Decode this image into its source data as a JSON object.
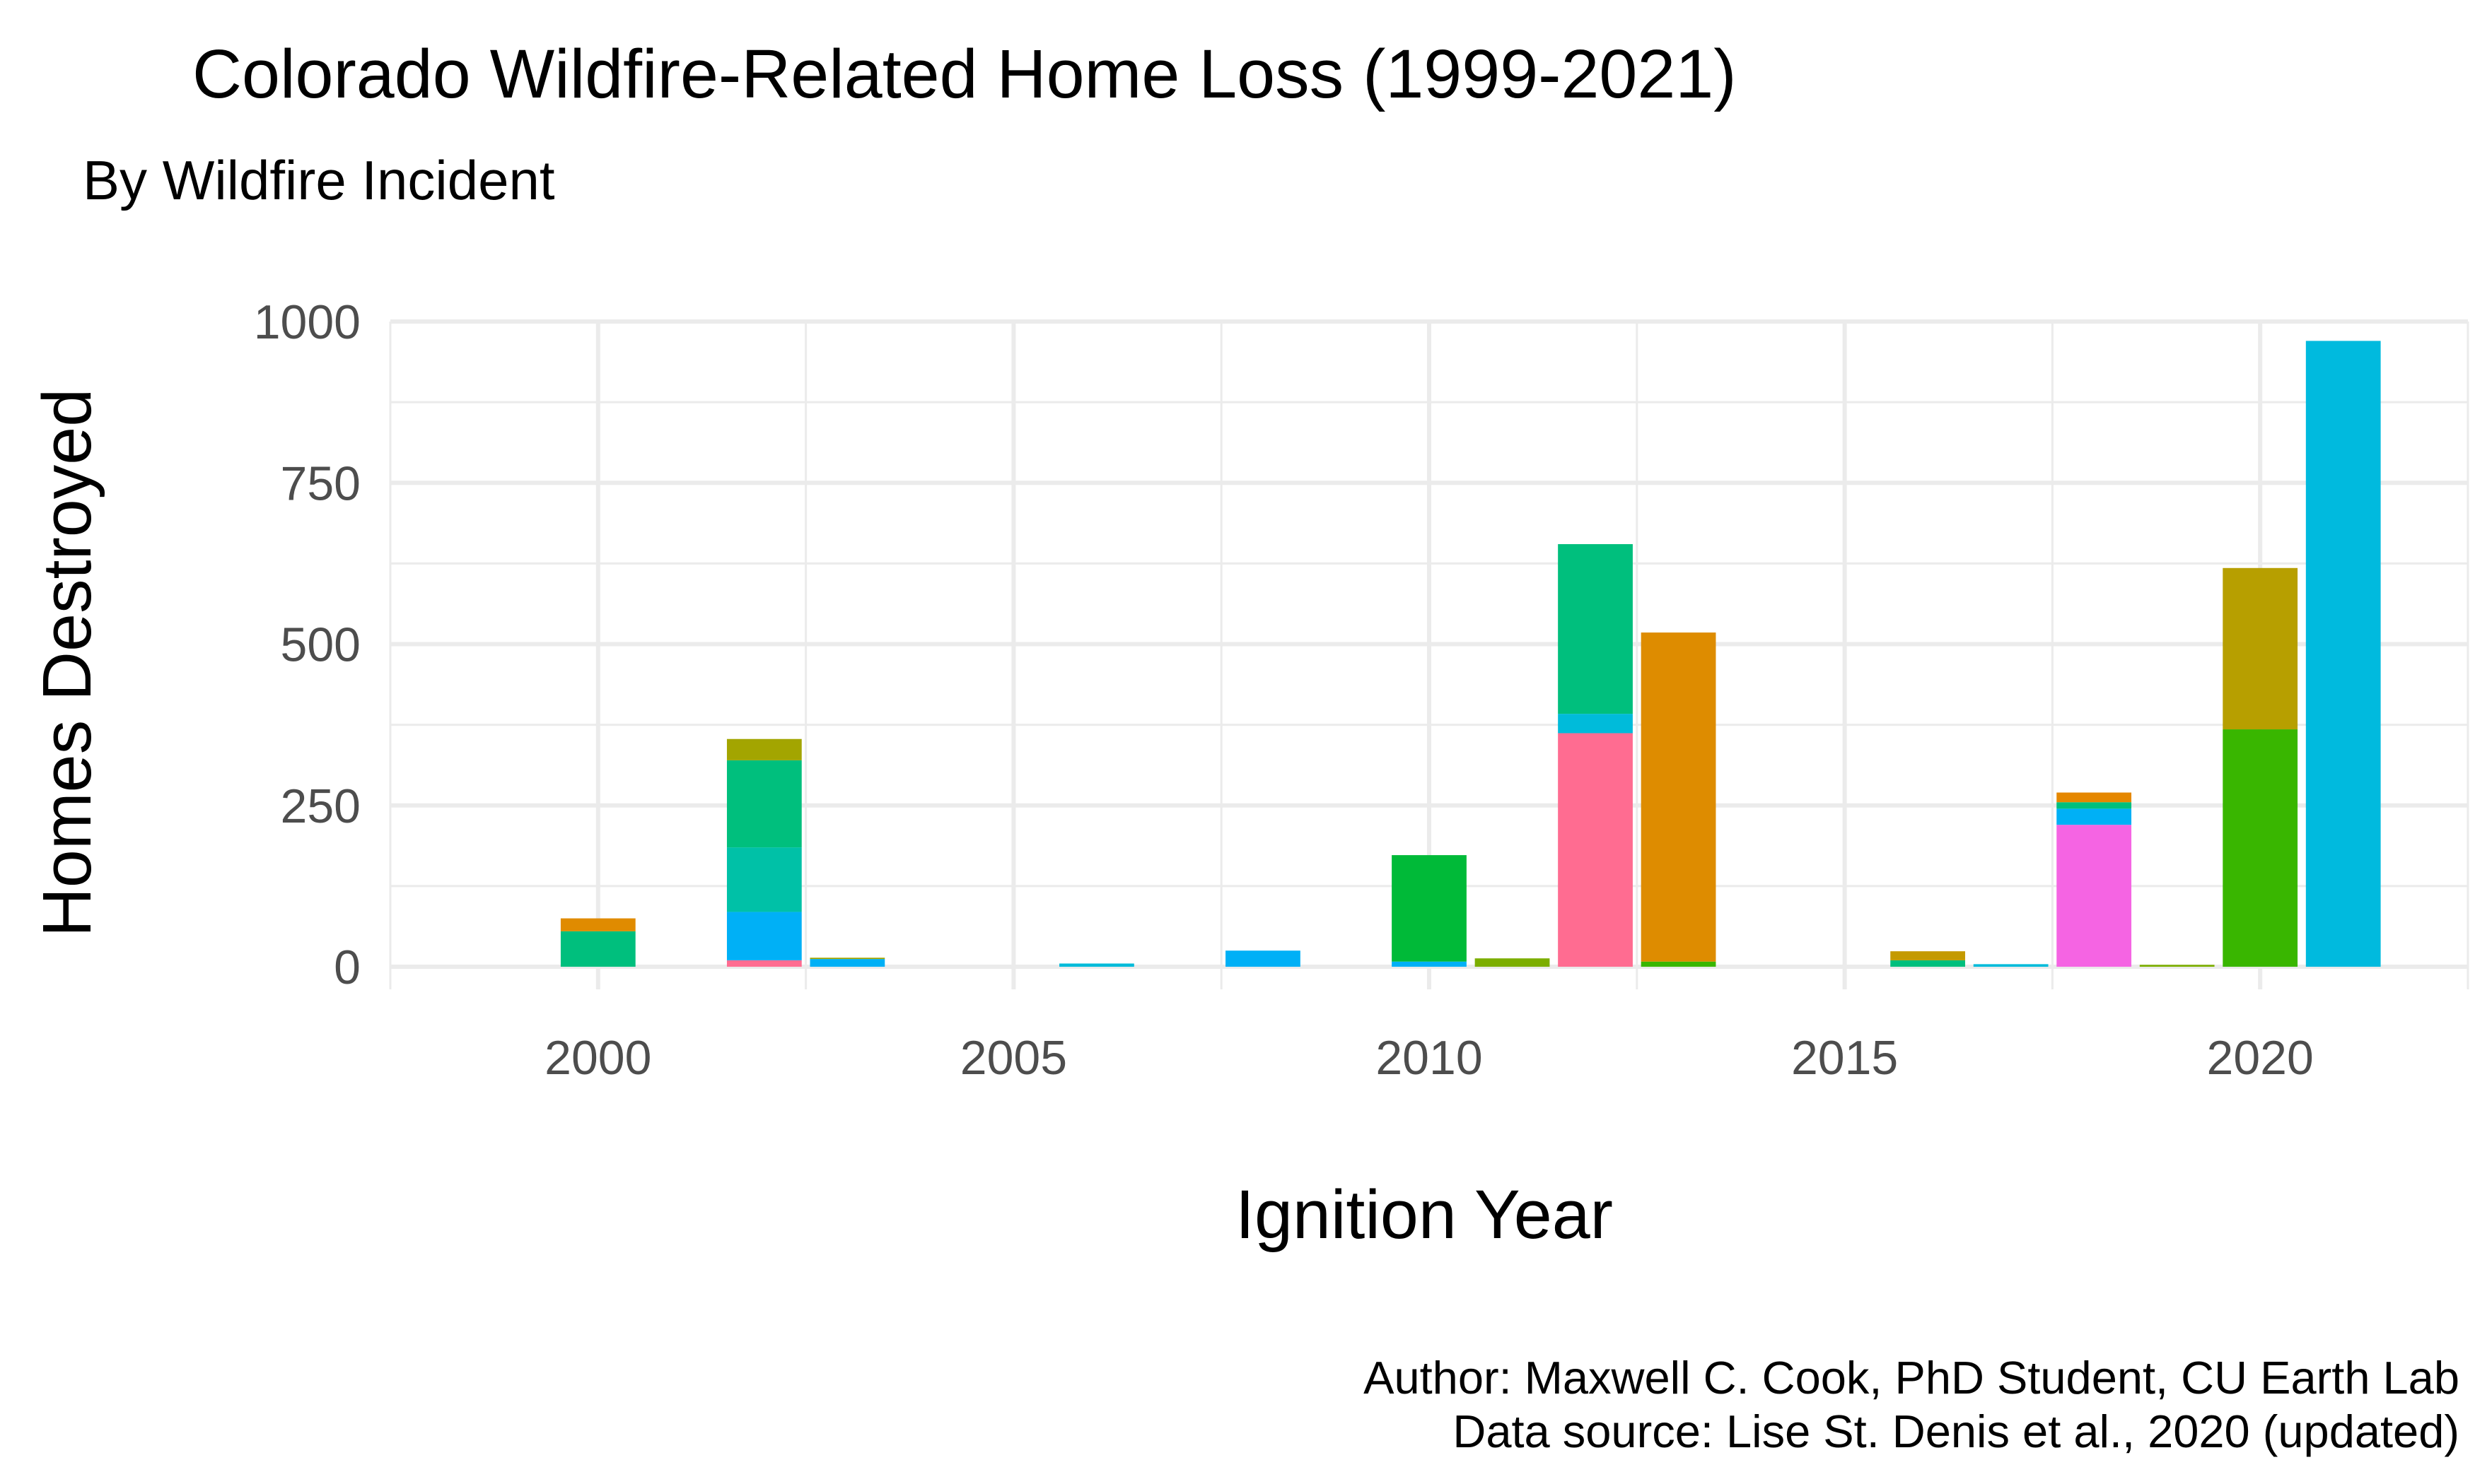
{
  "chart_data": {
    "type": "bar",
    "stacked": true,
    "title": "Colorado Wildfire-Related Home Loss (1999-2021)",
    "subtitle": "By Wildfire Incident",
    "xlabel": "Ignition Year",
    "ylabel": "Homes Destroyed",
    "caption": [
      "Author: Maxwell C. Cook, PhD Student, CU Earth Lab",
      "Data source: Lise St. Denis et al., 2020 (updated)"
    ],
    "xlim": [
      1997.5,
      2022.5
    ],
    "ylim": [
      -35,
      1000
    ],
    "x_ticks": [
      2000,
      2005,
      2010,
      2015,
      2020
    ],
    "x_tick_labels": [
      "2000",
      "2005",
      "2010",
      "2015",
      "2020"
    ],
    "y_ticks": [
      0,
      250,
      500,
      750,
      1000
    ],
    "y_tick_labels": [
      "0",
      "250",
      "500",
      "750",
      "1000"
    ],
    "grid": true,
    "legend": "none",
    "bars": [
      {
        "year": 2000,
        "segments": [
          {
            "value": 55,
            "color": "#00BF7D"
          },
          {
            "value": 20,
            "color": "#E08B00"
          }
        ]
      },
      {
        "year": 2002,
        "segments": [
          {
            "value": 10,
            "color": "#FF6C91"
          },
          {
            "value": 75,
            "color": "#00B0F6"
          },
          {
            "value": 100,
            "color": "#00C1A7"
          },
          {
            "value": 135,
            "color": "#00BF7D"
          },
          {
            "value": 33,
            "color": "#A3A500"
          }
        ]
      },
      {
        "year": 2003,
        "segments": [
          {
            "value": 12,
            "color": "#00B0F6"
          },
          {
            "value": 2,
            "color": "#A3A500"
          }
        ]
      },
      {
        "year": 2006,
        "segments": [
          {
            "value": 5,
            "color": "#00BBDA"
          }
        ]
      },
      {
        "year": 2008,
        "segments": [
          {
            "value": 25,
            "color": "#00B0F6"
          }
        ]
      },
      {
        "year": 2010,
        "segments": [
          {
            "value": 8,
            "color": "#00B0F6"
          },
          {
            "value": 165,
            "color": "#00BA38"
          }
        ]
      },
      {
        "year": 2011,
        "segments": [
          {
            "value": 13,
            "color": "#7CAE00"
          }
        ]
      },
      {
        "year": 2012,
        "segments": [
          {
            "value": 362,
            "color": "#FF6C91"
          },
          {
            "value": 30,
            "color": "#00BBDA"
          },
          {
            "value": 263,
            "color": "#00BF7D"
          }
        ]
      },
      {
        "year": 2013,
        "segments": [
          {
            "value": 8,
            "color": "#39B600"
          },
          {
            "value": 510,
            "color": "#DE8C00"
          }
        ]
      },
      {
        "year": 2016,
        "segments": [
          {
            "value": 10,
            "color": "#00BF7D"
          },
          {
            "value": 14,
            "color": "#C49A00"
          }
        ]
      },
      {
        "year": 2017,
        "segments": [
          {
            "value": 4,
            "color": "#00BBDA"
          }
        ]
      },
      {
        "year": 2018,
        "segments": [
          {
            "value": 220,
            "color": "#F564E3"
          },
          {
            "value": 25,
            "color": "#00B0F6"
          },
          {
            "value": 10,
            "color": "#00BF7D"
          },
          {
            "value": 15,
            "color": "#E58700"
          }
        ]
      },
      {
        "year": 2019,
        "segments": [
          {
            "value": 3,
            "color": "#7CAE00"
          }
        ]
      },
      {
        "year": 2020,
        "segments": [
          {
            "value": 368,
            "color": "#39B600"
          },
          {
            "value": 250,
            "color": "#B79F00"
          }
        ]
      },
      {
        "year": 2021,
        "segments": [
          {
            "value": 970,
            "color": "#00BADE"
          }
        ]
      }
    ]
  }
}
